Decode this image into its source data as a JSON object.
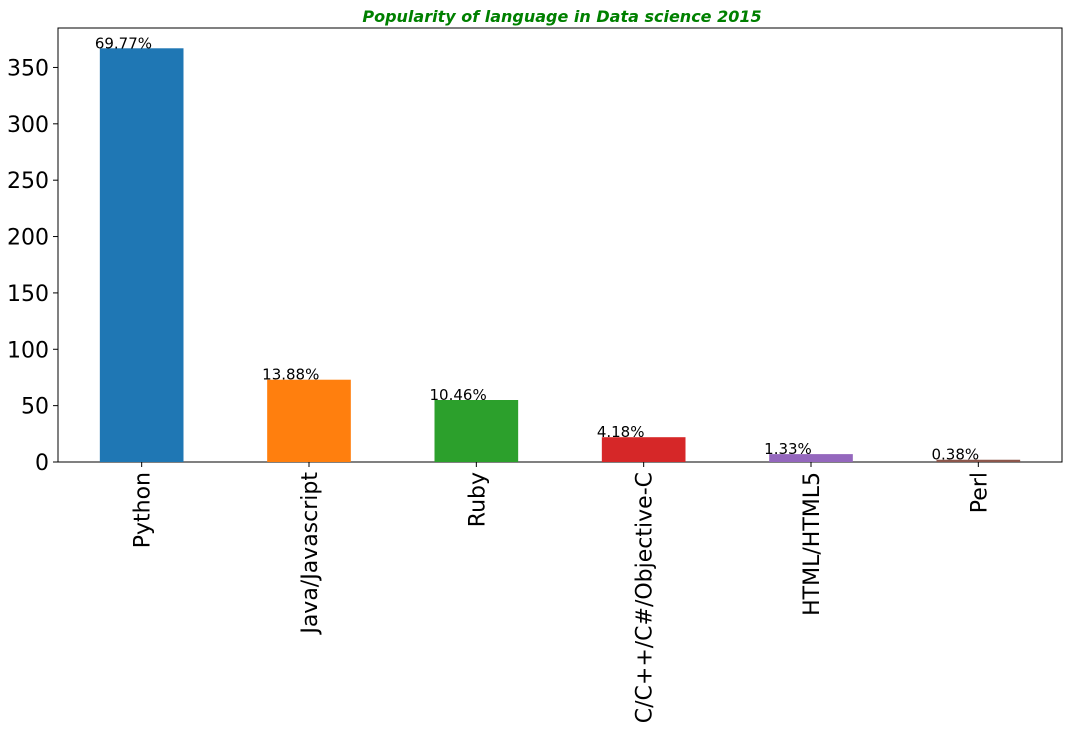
{
  "chart_data": {
    "type": "bar",
    "title": "Popularity of language in Data science 2015",
    "title_color": "#008000",
    "xlabel": "",
    "ylabel": "",
    "ylim": [
      0,
      385
    ],
    "yticks": [
      0,
      50,
      100,
      150,
      200,
      250,
      300,
      350
    ],
    "grid": false,
    "categories": [
      "Python",
      "Java/Javascript",
      "Ruby",
      "C/C++/C#/Objective-C",
      "HTML/HTML5",
      "Perl"
    ],
    "values": [
      367,
      73,
      55,
      22,
      7,
      2
    ],
    "data_labels": [
      "69.77%",
      "13.88%",
      "10.46%",
      "4.18%",
      "1.33%",
      "0.38%"
    ],
    "colors": [
      "#1f77b4",
      "#ff7f0e",
      "#2ca02c",
      "#d62728",
      "#9467bd",
      "#8c564b"
    ]
  }
}
